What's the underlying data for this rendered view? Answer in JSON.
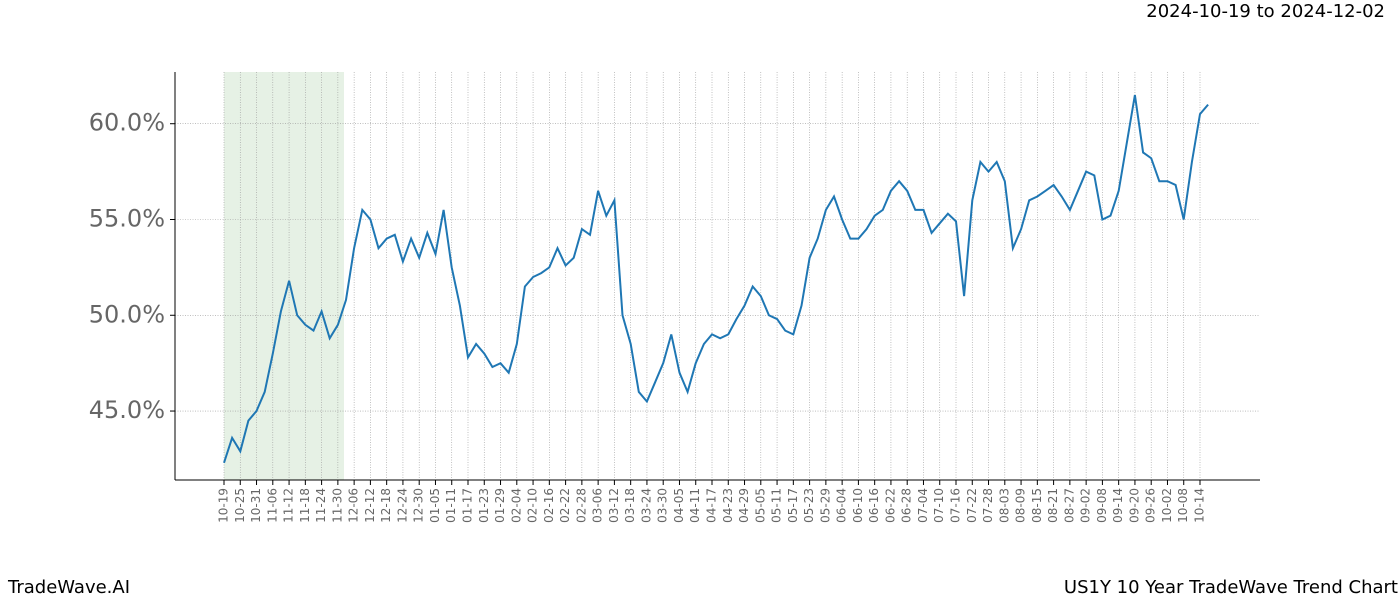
{
  "chart_data": {
    "type": "line",
    "title": "US1Y 10 Year TradeWave Trend Chart",
    "date_range": "2024-10-19 to 2024-12-02",
    "brand": "TradeWave.AI",
    "color": "#1f77b4",
    "grid": true,
    "categories": [
      "10-19",
      null,
      "10-25",
      null,
      "10-31",
      null,
      "11-06",
      null,
      "11-12",
      null,
      "11-18",
      null,
      "11-24",
      null,
      "11-30",
      null,
      "12-06",
      null,
      "12-12",
      null,
      "12-18",
      null,
      "12-24",
      null,
      "12-30",
      null,
      "01-05",
      null,
      "01-11",
      null,
      "01-17",
      null,
      "01-23",
      null,
      "01-29",
      null,
      "02-04",
      null,
      "02-10",
      null,
      "02-16",
      null,
      "02-22",
      null,
      "02-28",
      null,
      "03-06",
      null,
      "03-12",
      null,
      "03-18",
      null,
      "03-24",
      null,
      "03-30",
      null,
      "04-05",
      null,
      "04-11",
      null,
      "04-17",
      null,
      "04-23",
      null,
      "04-29",
      null,
      "05-05",
      null,
      "05-11",
      null,
      "05-17",
      null,
      "05-23",
      null,
      "05-29",
      null,
      "06-04",
      null,
      "06-10",
      null,
      "06-16",
      null,
      "06-22",
      null,
      "06-28",
      null,
      "07-04",
      null,
      "07-10",
      null,
      "07-16",
      null,
      "07-22",
      null,
      "07-28",
      null,
      "08-03",
      null,
      "08-09",
      null,
      "08-15",
      null,
      "08-21",
      null,
      "08-27",
      null,
      "09-02",
      null,
      "09-08",
      null,
      "09-14",
      null,
      "09-20",
      null,
      "09-26",
      null,
      "10-02",
      null,
      "10-08",
      null,
      "10-14",
      null
    ],
    "values": [
      42.3,
      43.6,
      42.9,
      44.5,
      45.0,
      46.0,
      48.0,
      50.2,
      51.8,
      50.0,
      49.5,
      49.2,
      50.2,
      48.8,
      49.5,
      50.8,
      53.5,
      55.5,
      55.0,
      53.5,
      54.0,
      54.2,
      52.8,
      54.0,
      53.0,
      54.3,
      53.2,
      55.5,
      52.5,
      50.5,
      47.8,
      48.5,
      48.0,
      47.3,
      47.5,
      47.0,
      48.5,
      51.5,
      52.0,
      52.2,
      52.5,
      53.5,
      52.6,
      53.0,
      54.5,
      54.2,
      56.5,
      55.2,
      56.0,
      50.0,
      48.5,
      46.0,
      45.5,
      46.5,
      47.5,
      49.0,
      47.0,
      46.0,
      47.5,
      48.5,
      49.0,
      48.8,
      49.0,
      49.8,
      50.5,
      51.5,
      51.0,
      50.0,
      49.8,
      49.2,
      49.0,
      50.5,
      53.0,
      54.0,
      55.5,
      56.2,
      55.0,
      54.0,
      54.0,
      54.5,
      55.2,
      55.5,
      56.5,
      57.0,
      56.5,
      55.5,
      55.5,
      54.3,
      54.8,
      55.3,
      54.9,
      51.0,
      56.0,
      58.0,
      57.5,
      58.0,
      57.0,
      53.5,
      54.5,
      56.0,
      56.2,
      56.5,
      56.8,
      56.2,
      55.5,
      56.5,
      57.5,
      57.3,
      55.0,
      55.2,
      56.5,
      59.0,
      61.5,
      58.5,
      58.2,
      57.0,
      57.0,
      56.8,
      55.0,
      58.0,
      60.5,
      61.0
    ],
    "ylim": [
      41.4,
      62.7
    ],
    "yticks": [
      {
        "value": 45,
        "label": "45.0%"
      },
      {
        "value": 50,
        "label": "50.0%"
      },
      {
        "value": 55,
        "label": "55.0%"
      },
      {
        "value": 60,
        "label": "60.0%"
      }
    ]
  }
}
